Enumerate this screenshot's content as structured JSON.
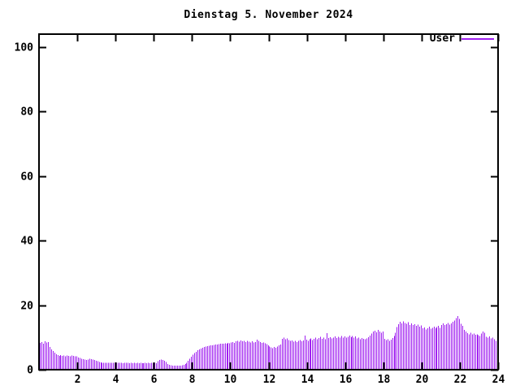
{
  "title": "Dienstag 5. November 2024",
  "legend": {
    "label": "User",
    "position": "top-right"
  },
  "colors": {
    "background": "#ffffff",
    "axis": "#000000",
    "text": "#000000",
    "bars": "#a020f0"
  },
  "chart_data": {
    "type": "bar",
    "title": "Dienstag 5. November 2024",
    "xlabel": "",
    "ylabel": "",
    "xlim": [
      0,
      24
    ],
    "ylim": [
      0,
      104
    ],
    "x_ticks": [
      2,
      4,
      6,
      8,
      10,
      12,
      14,
      16,
      18,
      20,
      22,
      24
    ],
    "y_ticks": [
      0,
      20,
      40,
      60,
      80,
      100
    ],
    "grid": false,
    "legend_position": "top-right",
    "interval_minutes": 5,
    "series": [
      {
        "name": "User",
        "color": "#a020f0",
        "values": [
          8.3,
          8.6,
          8.1,
          8.8,
          8.4,
          8.6,
          7.0,
          6.3,
          5.8,
          5.3,
          4.8,
          4.5,
          4.3,
          4.5,
          4.3,
          4.4,
          4.2,
          4.4,
          4.3,
          4.2,
          4.4,
          4.3,
          4.2,
          4.1,
          3.8,
          3.6,
          3.4,
          3.3,
          3.1,
          3.0,
          3.2,
          3.4,
          3.3,
          3.2,
          3.0,
          2.8,
          2.6,
          2.4,
          2.3,
          2.2,
          2.2,
          2.1,
          2.2,
          2.1,
          2.2,
          2.1,
          2.2,
          2.1,
          2.2,
          2.1,
          2.2,
          2.1,
          2.0,
          2.1,
          2.2,
          2.1,
          2.0,
          2.1,
          2.0,
          2.1,
          2.0,
          2.1,
          2.0,
          2.1,
          2.0,
          2.0,
          2.1,
          2.0,
          2.1,
          2.0,
          2.1,
          2.0,
          2.1,
          2.0,
          2.6,
          3.0,
          3.2,
          3.0,
          2.8,
          2.4,
          1.8,
          1.5,
          1.4,
          1.3,
          1.3,
          1.2,
          1.3,
          1.2,
          1.3,
          1.4,
          1.5,
          1.8,
          2.2,
          2.8,
          3.4,
          4.0,
          4.6,
          5.2,
          5.6,
          6.0,
          6.3,
          6.6,
          6.8,
          7.0,
          7.2,
          7.3,
          7.4,
          7.5,
          7.6,
          7.7,
          7.8,
          7.8,
          7.9,
          8.0,
          8.1,
          8.0,
          8.2,
          8.1,
          8.3,
          8.2,
          8.4,
          8.6,
          8.3,
          8.8,
          9.0,
          8.7,
          9.1,
          8.8,
          9.0,
          8.6,
          8.9,
          8.7,
          8.5,
          8.8,
          8.4,
          8.6,
          9.3,
          8.9,
          8.6,
          8.3,
          8.5,
          8.2,
          7.9,
          7.6,
          7.2,
          6.9,
          6.7,
          7.0,
          6.8,
          7.2,
          7.5,
          7.8,
          9.6,
          9.9,
          9.4,
          9.7,
          9.2,
          8.9,
          9.1,
          8.7,
          9.0,
          8.6,
          8.9,
          9.2,
          8.8,
          9.1,
          10.6,
          9.3,
          9.0,
          9.4,
          9.7,
          9.2,
          9.6,
          9.9,
          9.4,
          9.8,
          10.2,
          9.6,
          10.0,
          9.5,
          11.3,
          9.8,
          10.1,
          9.7,
          10.0,
          10.3,
          9.8,
          10.2,
          9.9,
          10.4,
          10.0,
          10.3,
          9.9,
          10.2,
          10.6,
          10.1,
          10.4,
          9.9,
          10.3,
          9.7,
          10.0,
          9.5,
          9.8,
          9.6,
          9.4,
          9.7,
          10.1,
          10.6,
          11.2,
          11.8,
          12.1,
          11.6,
          12.3,
          11.9,
          11.5,
          11.8,
          9.6,
          9.2,
          9.5,
          9.0,
          9.3,
          9.8,
          10.5,
          11.4,
          13.2,
          14.1,
          14.8,
          14.4,
          15.0,
          14.5,
          14.2,
          14.7,
          13.9,
          14.3,
          13.8,
          14.1,
          13.6,
          14.0,
          13.4,
          13.7,
          12.8,
          13.1,
          12.5,
          12.9,
          13.3,
          12.7,
          13.0,
          13.4,
          12.8,
          13.2,
          13.6,
          13.0,
          13.9,
          14.3,
          13.8,
          14.1,
          14.5,
          14.0,
          14.4,
          14.8,
          15.3,
          16.0,
          16.6,
          15.8,
          14.2,
          13.6,
          12.4,
          11.8,
          11.3,
          11.0,
          11.4,
          10.9,
          11.2,
          10.8,
          11.0,
          10.7,
          10.5,
          11.2,
          11.8,
          11.4,
          10.2,
          9.9,
          10.3,
          9.7,
          10.0,
          9.4,
          9.0,
          8.5
        ]
      }
    ]
  }
}
